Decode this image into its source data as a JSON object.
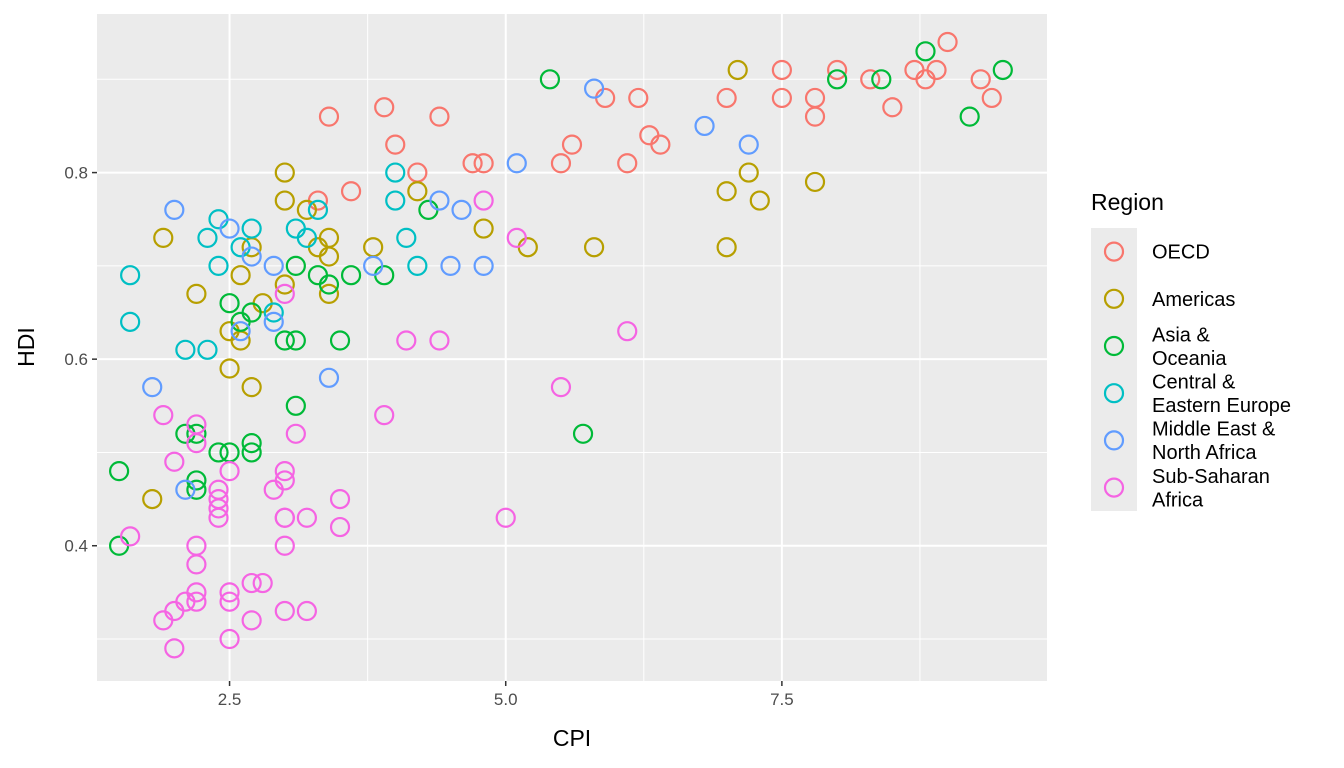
{
  "chart_data": {
    "type": "scatter",
    "xlabel": "CPI",
    "ylabel": "HDI",
    "xlim": [
      1.3,
      9.9
    ],
    "ylim": [
      0.255,
      0.97
    ],
    "x_ticks": [
      2.5,
      5.0,
      7.5
    ],
    "x_tick_labels": [
      "2.5",
      "5.0",
      "7.5"
    ],
    "y_ticks": [
      0.4,
      0.6,
      0.8
    ],
    "y_tick_labels": [
      "0.4",
      "0.6",
      "0.8"
    ],
    "background": "#ebebeb",
    "grid": true,
    "legend": {
      "title": "Region",
      "position": "right",
      "marker": "open-circle"
    },
    "series": [
      {
        "name": "OECD",
        "label_lines": [
          "OECD"
        ],
        "color": "#F8766D",
        "points": [
          [
            3.4,
            0.86
          ],
          [
            3.3,
            0.77
          ],
          [
            3.6,
            0.78
          ],
          [
            3.9,
            0.87
          ],
          [
            4.0,
            0.83
          ],
          [
            4.2,
            0.8
          ],
          [
            4.4,
            0.86
          ],
          [
            4.7,
            0.81
          ],
          [
            4.8,
            0.81
          ],
          [
            5.5,
            0.81
          ],
          [
            5.6,
            0.83
          ],
          [
            5.9,
            0.88
          ],
          [
            6.1,
            0.81
          ],
          [
            6.2,
            0.88
          ],
          [
            6.3,
            0.84
          ],
          [
            6.4,
            0.83
          ],
          [
            7.0,
            0.88
          ],
          [
            7.5,
            0.91
          ],
          [
            7.5,
            0.88
          ],
          [
            7.8,
            0.88
          ],
          [
            7.8,
            0.86
          ],
          [
            8.0,
            0.91
          ],
          [
            8.3,
            0.9
          ],
          [
            8.5,
            0.87
          ],
          [
            8.7,
            0.91
          ],
          [
            8.8,
            0.9
          ],
          [
            8.9,
            0.91
          ],
          [
            9.0,
            0.94
          ],
          [
            9.3,
            0.9
          ],
          [
            9.4,
            0.88
          ]
        ]
      },
      {
        "name": "Americas",
        "label_lines": [
          "Americas"
        ],
        "color": "#B79F00",
        "points": [
          [
            1.8,
            0.45
          ],
          [
            1.9,
            0.73
          ],
          [
            2.2,
            0.67
          ],
          [
            2.5,
            0.63
          ],
          [
            2.5,
            0.59
          ],
          [
            2.6,
            0.62
          ],
          [
            2.6,
            0.69
          ],
          [
            2.7,
            0.72
          ],
          [
            2.7,
            0.57
          ],
          [
            2.8,
            0.66
          ],
          [
            3.0,
            0.68
          ],
          [
            3.0,
            0.8
          ],
          [
            3.0,
            0.77
          ],
          [
            3.2,
            0.76
          ],
          [
            3.3,
            0.72
          ],
          [
            3.4,
            0.71
          ],
          [
            3.4,
            0.67
          ],
          [
            3.4,
            0.73
          ],
          [
            3.8,
            0.72
          ],
          [
            4.2,
            0.78
          ],
          [
            4.8,
            0.74
          ],
          [
            5.2,
            0.72
          ],
          [
            5.8,
            0.72
          ],
          [
            7.0,
            0.78
          ],
          [
            7.0,
            0.72
          ],
          [
            7.1,
            0.91
          ],
          [
            7.2,
            0.8
          ],
          [
            7.3,
            0.77
          ],
          [
            7.8,
            0.79
          ]
        ]
      },
      {
        "name": "Asia & Oceania",
        "label_lines": [
          "Asia &",
          "Oceania"
        ],
        "color": "#00BA38",
        "points": [
          [
            1.5,
            0.4
          ],
          [
            1.5,
            0.48
          ],
          [
            2.1,
            0.52
          ],
          [
            2.2,
            0.46
          ],
          [
            2.2,
            0.47
          ],
          [
            2.2,
            0.52
          ],
          [
            2.4,
            0.5
          ],
          [
            2.5,
            0.5
          ],
          [
            2.5,
            0.66
          ],
          [
            2.6,
            0.64
          ],
          [
            2.7,
            0.5
          ],
          [
            2.7,
            0.51
          ],
          [
            2.7,
            0.65
          ],
          [
            3.0,
            0.62
          ],
          [
            3.1,
            0.62
          ],
          [
            3.1,
            0.7
          ],
          [
            3.1,
            0.55
          ],
          [
            3.3,
            0.69
          ],
          [
            3.4,
            0.68
          ],
          [
            3.5,
            0.62
          ],
          [
            3.6,
            0.69
          ],
          [
            3.9,
            0.69
          ],
          [
            4.3,
            0.76
          ],
          [
            5.4,
            0.9
          ],
          [
            5.7,
            0.52
          ],
          [
            8.0,
            0.9
          ],
          [
            8.4,
            0.9
          ],
          [
            8.8,
            0.93
          ],
          [
            9.2,
            0.86
          ],
          [
            9.5,
            0.91
          ]
        ]
      },
      {
        "name": "Central & Eastern Europe",
        "label_lines": [
          "Central &",
          "Eastern Europe"
        ],
        "color": "#00BFC4",
        "points": [
          [
            1.6,
            0.69
          ],
          [
            1.6,
            0.64
          ],
          [
            2.1,
            0.61
          ],
          [
            2.3,
            0.61
          ],
          [
            2.3,
            0.73
          ],
          [
            2.4,
            0.75
          ],
          [
            2.4,
            0.7
          ],
          [
            2.6,
            0.72
          ],
          [
            2.7,
            0.74
          ],
          [
            2.9,
            0.65
          ],
          [
            3.1,
            0.74
          ],
          [
            3.2,
            0.73
          ],
          [
            3.3,
            0.76
          ],
          [
            4.0,
            0.8
          ],
          [
            4.0,
            0.77
          ],
          [
            4.1,
            0.73
          ],
          [
            4.2,
            0.7
          ]
        ]
      },
      {
        "name": "Middle East & North Africa",
        "label_lines": [
          "Middle East &",
          "North Africa"
        ],
        "color": "#619CFF",
        "points": [
          [
            1.8,
            0.57
          ],
          [
            2.0,
            0.76
          ],
          [
            2.1,
            0.46
          ],
          [
            2.5,
            0.74
          ],
          [
            2.6,
            0.63
          ],
          [
            2.7,
            0.71
          ],
          [
            2.9,
            0.7
          ],
          [
            2.9,
            0.64
          ],
          [
            3.4,
            0.58
          ],
          [
            3.8,
            0.7
          ],
          [
            4.4,
            0.77
          ],
          [
            4.5,
            0.7
          ],
          [
            4.6,
            0.76
          ],
          [
            4.8,
            0.7
          ],
          [
            5.1,
            0.81
          ],
          [
            5.8,
            0.89
          ],
          [
            6.8,
            0.85
          ],
          [
            7.2,
            0.83
          ]
        ]
      },
      {
        "name": "Sub-Saharan Africa",
        "label_lines": [
          "Sub-Saharan",
          "Africa"
        ],
        "color": "#F564E3",
        "points": [
          [
            1.6,
            0.41
          ],
          [
            1.9,
            0.32
          ],
          [
            1.9,
            0.54
          ],
          [
            2.0,
            0.49
          ],
          [
            2.0,
            0.33
          ],
          [
            2.0,
            0.29
          ],
          [
            2.1,
            0.34
          ],
          [
            2.2,
            0.51
          ],
          [
            2.2,
            0.53
          ],
          [
            2.2,
            0.4
          ],
          [
            2.2,
            0.38
          ],
          [
            2.2,
            0.34
          ],
          [
            2.2,
            0.35
          ],
          [
            2.4,
            0.46
          ],
          [
            2.4,
            0.45
          ],
          [
            2.4,
            0.44
          ],
          [
            2.4,
            0.43
          ],
          [
            2.5,
            0.48
          ],
          [
            2.5,
            0.35
          ],
          [
            2.5,
            0.34
          ],
          [
            2.5,
            0.3
          ],
          [
            2.7,
            0.36
          ],
          [
            2.7,
            0.32
          ],
          [
            2.8,
            0.36
          ],
          [
            2.9,
            0.46
          ],
          [
            3.0,
            0.67
          ],
          [
            3.0,
            0.48
          ],
          [
            3.0,
            0.47
          ],
          [
            3.0,
            0.43
          ],
          [
            3.0,
            0.43
          ],
          [
            3.0,
            0.4
          ],
          [
            3.0,
            0.33
          ],
          [
            3.1,
            0.52
          ],
          [
            3.2,
            0.33
          ],
          [
            3.2,
            0.43
          ],
          [
            3.5,
            0.45
          ],
          [
            3.5,
            0.42
          ],
          [
            3.9,
            0.54
          ],
          [
            4.1,
            0.62
          ],
          [
            4.4,
            0.62
          ],
          [
            4.8,
            0.77
          ],
          [
            5.0,
            0.43
          ],
          [
            5.1,
            0.73
          ],
          [
            5.5,
            0.57
          ],
          [
            6.1,
            0.63
          ]
        ]
      }
    ]
  }
}
